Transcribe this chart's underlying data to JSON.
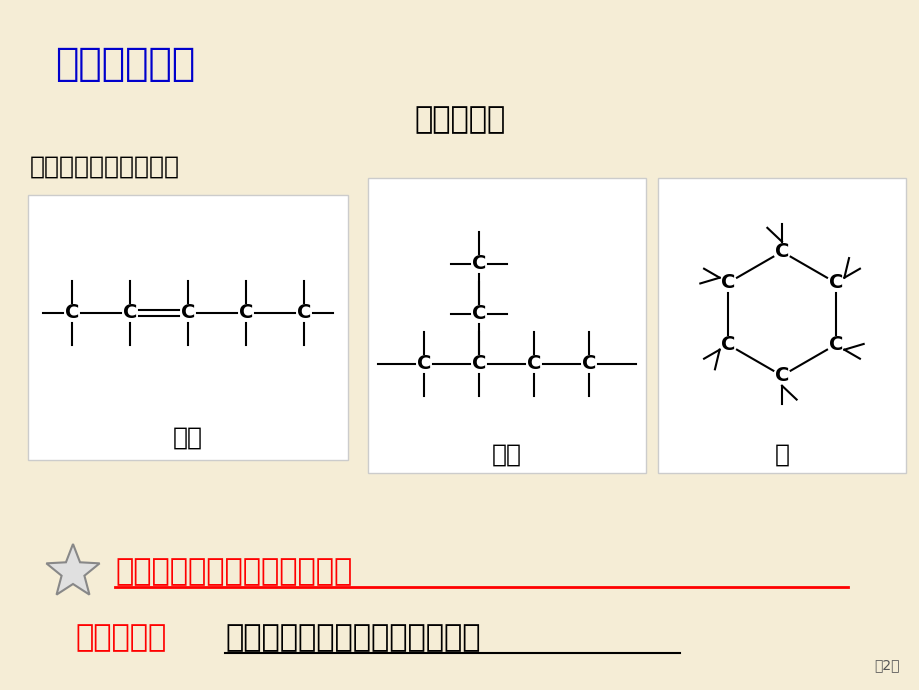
{
  "bg_color": "#F5EDD6",
  "title": "一、碳化合物",
  "title_color": "#0000CC",
  "subtitle": "观察与思索",
  "subtitle_color": "#000000",
  "section_label": "碳原子形成几个结构：",
  "section_label_color": "#000000",
  "box1_label": "直链",
  "box2_label": "支链",
  "box3_label": "环",
  "highlight_text": "碳是全部生命系统中关键元素",
  "highlight_color": "#FF0000",
  "bottom_label": "生物大分子",
  "bottom_label_color": "#FF0000",
  "bottom_content": "：糖类、脂质、核酸和蛋白质等",
  "bottom_content_color": "#000000",
  "page_num": "第2页",
  "box_bg": "#FFFFFF"
}
